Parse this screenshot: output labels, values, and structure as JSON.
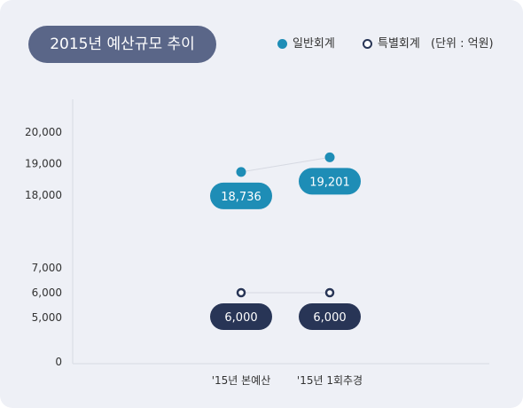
{
  "title": "2015년 예산규모 추이",
  "legend": {
    "general": "일반회계",
    "special": "특별회계",
    "unit": "(단위 : 억원)"
  },
  "colors": {
    "title_bg": "#5a6688",
    "general": "#1e8db6",
    "special": "#283556",
    "card_bg": "#eef0f6"
  },
  "chart_data": {
    "type": "line",
    "title": "2015년 예산규모 추이",
    "unit": "(단위 : 억원)",
    "categories": [
      "'15년 본예산",
      "'15년 1회추경"
    ],
    "y_ticks": [
      "20,000",
      "19,000",
      "18,000",
      "7,000",
      "6,000",
      "5,000",
      "0"
    ],
    "y_axis_broken": true,
    "series": [
      {
        "name": "일반회계",
        "values": [
          18736,
          19201
        ],
        "labels": [
          "18,736",
          "19,201"
        ]
      },
      {
        "name": "특별회계",
        "values": [
          6000,
          6000
        ],
        "labels": [
          "6,000",
          "6,000"
        ]
      }
    ],
    "grid": false,
    "legend_position": "top-right"
  }
}
